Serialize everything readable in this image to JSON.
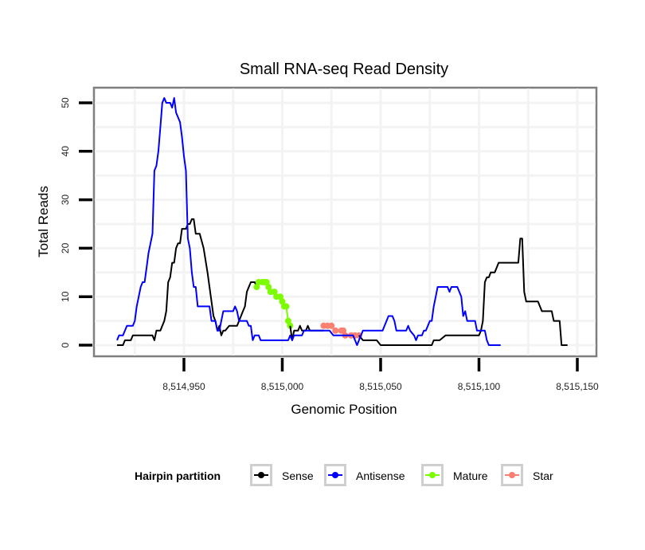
{
  "chart_data": {
    "type": "line",
    "title": "Small RNA-seq Read Density",
    "xlabel": "Genomic Position",
    "ylabel": "Total Reads",
    "xlim": [
      8514916,
      8515150
    ],
    "ylim": [
      -2,
      53
    ],
    "x_ticks": [
      8514950,
      8515000,
      8515050,
      8515100,
      8515150
    ],
    "x_tick_labels": [
      "8,514,950",
      "8,515,000",
      "8,515,050",
      "8,515,100",
      "8,515,150"
    ],
    "y_ticks": [
      0,
      10,
      20,
      30,
      40,
      50
    ],
    "y_tick_labels": [
      "0",
      "10",
      "20",
      "30",
      "40",
      "50"
    ],
    "grid": true,
    "legend_position": "bottom",
    "legend_title": "Hairpin partition",
    "series": [
      {
        "name": "Sense",
        "color": "#000000",
        "points": [
          [
            8514916,
            0
          ],
          [
            8514919,
            0
          ],
          [
            8514920,
            1
          ],
          [
            8514923,
            1
          ],
          [
            8514924,
            2
          ],
          [
            8514934,
            2
          ],
          [
            8514935,
            1
          ],
          [
            8514936,
            3
          ],
          [
            8514938,
            3
          ],
          [
            8514939,
            4
          ],
          [
            8514940,
            5
          ],
          [
            8514941,
            7
          ],
          [
            8514942,
            13
          ],
          [
            8514943,
            14
          ],
          [
            8514944,
            17
          ],
          [
            8514945,
            17
          ],
          [
            8514946,
            20
          ],
          [
            8514947,
            21
          ],
          [
            8514948,
            21
          ],
          [
            8514949,
            24
          ],
          [
            8514951,
            24
          ],
          [
            8514952,
            25
          ],
          [
            8514953,
            25
          ],
          [
            8514954,
            26
          ],
          [
            8514955,
            26
          ],
          [
            8514956,
            23
          ],
          [
            8514958,
            23
          ],
          [
            8514960,
            20
          ],
          [
            8514962,
            15
          ],
          [
            8514964,
            9
          ],
          [
            8514965,
            6
          ],
          [
            8514966,
            5
          ],
          [
            8514967,
            3
          ],
          [
            8514968,
            4
          ],
          [
            8514969,
            2
          ],
          [
            8514970,
            3
          ],
          [
            8514971,
            3
          ],
          [
            8514973,
            4
          ],
          [
            8514977,
            4
          ],
          [
            8514978,
            5
          ],
          [
            8514980,
            7
          ],
          [
            8514981,
            8
          ],
          [
            8514982,
            11
          ],
          [
            8514983,
            12
          ],
          [
            8514984,
            13
          ],
          [
            8514986,
            13
          ],
          [
            8514987,
            12
          ]
        ]
      },
      {
        "name": "Mature",
        "color": "#7cfc00",
        "points": [
          [
            8514987,
            12
          ],
          [
            8514988,
            13
          ],
          [
            8514990,
            13
          ],
          [
            8514991,
            13
          ],
          [
            8514992,
            13
          ],
          [
            8514993,
            12
          ],
          [
            8514994,
            11
          ],
          [
            8514996,
            11
          ],
          [
            8514997,
            10
          ],
          [
            8514999,
            10
          ],
          [
            8515000,
            9
          ],
          [
            8515001,
            8
          ],
          [
            8515002,
            8
          ],
          [
            8515003,
            5
          ],
          [
            8515004,
            4
          ]
        ]
      },
      {
        "name": "Sense",
        "color": "#000000",
        "points": [
          [
            8515004,
            4
          ],
          [
            8515005,
            1
          ],
          [
            8515006,
            3
          ],
          [
            8515008,
            3
          ],
          [
            8515009,
            4
          ],
          [
            8515010,
            3
          ],
          [
            8515012,
            3
          ],
          [
            8515013,
            4
          ],
          [
            8515014,
            3
          ],
          [
            8515017,
            3
          ],
          [
            8515021,
            3
          ]
        ]
      },
      {
        "name": "Star",
        "color": "#fa8072",
        "points": [
          [
            8515021,
            4
          ],
          [
            8515023,
            4
          ],
          [
            8515025,
            4
          ],
          [
            8515027,
            3
          ],
          [
            8515030,
            3
          ],
          [
            8515031,
            3
          ],
          [
            8515032,
            2
          ],
          [
            8515035,
            2
          ],
          [
            8515037,
            2
          ],
          [
            8515039,
            2
          ]
        ]
      },
      {
        "name": "Sense",
        "color": "#000000",
        "points": [
          [
            8515039,
            2
          ],
          [
            8515041,
            1
          ],
          [
            8515048,
            1
          ],
          [
            8515050,
            0
          ],
          [
            8515076,
            0
          ],
          [
            8515077,
            1
          ],
          [
            8515080,
            1
          ],
          [
            8515083,
            2
          ],
          [
            8515100,
            2
          ],
          [
            8515101,
            3
          ],
          [
            8515102,
            5
          ],
          [
            8515103,
            13
          ],
          [
            8515104,
            14
          ],
          [
            8515105,
            14
          ],
          [
            8515106,
            15
          ],
          [
            8515108,
            15
          ],
          [
            8515110,
            17
          ],
          [
            8515120,
            17
          ],
          [
            8515121,
            22
          ],
          [
            8515122,
            22
          ],
          [
            8515123,
            11
          ],
          [
            8515124,
            9
          ],
          [
            8515130,
            9
          ],
          [
            8515132,
            7
          ],
          [
            8515137,
            7
          ],
          [
            8515138,
            5
          ],
          [
            8515141,
            5
          ],
          [
            8515142,
            0
          ],
          [
            8515145,
            0
          ]
        ]
      },
      {
        "name": "Antisense",
        "color": "#0000ff",
        "points": [
          [
            8514916,
            1
          ],
          [
            8514917,
            2
          ],
          [
            8514919,
            2
          ],
          [
            8514921,
            4
          ],
          [
            8514924,
            4
          ],
          [
            8514925,
            5
          ],
          [
            8514926,
            8
          ],
          [
            8514927,
            10
          ],
          [
            8514928,
            12
          ],
          [
            8514929,
            13
          ],
          [
            8514930,
            13
          ],
          [
            8514931,
            16
          ],
          [
            8514932,
            19
          ],
          [
            8514933,
            21
          ],
          [
            8514934,
            23
          ],
          [
            8514935,
            36
          ],
          [
            8514936,
            37
          ],
          [
            8514937,
            40
          ],
          [
            8514938,
            45
          ],
          [
            8514939,
            50
          ],
          [
            8514940,
            51
          ],
          [
            8514941,
            50
          ],
          [
            8514943,
            50
          ],
          [
            8514944,
            49
          ],
          [
            8514945,
            51
          ],
          [
            8514946,
            48
          ],
          [
            8514947,
            47
          ],
          [
            8514948,
            46
          ],
          [
            8514949,
            43
          ],
          [
            8514950,
            39
          ],
          [
            8514951,
            36
          ],
          [
            8514952,
            22
          ],
          [
            8514953,
            20
          ],
          [
            8514954,
            15
          ],
          [
            8514955,
            12
          ],
          [
            8514956,
            12
          ],
          [
            8514957,
            8
          ],
          [
            8514963,
            8
          ],
          [
            8514964,
            5
          ],
          [
            8514966,
            5
          ],
          [
            8514967,
            3
          ],
          [
            8514968,
            3
          ],
          [
            8514969,
            5
          ],
          [
            8514970,
            7
          ],
          [
            8514975,
            7
          ],
          [
            8514976,
            8
          ],
          [
            8514977,
            7
          ],
          [
            8514978,
            5
          ],
          [
            8514982,
            5
          ],
          [
            8514983,
            4
          ],
          [
            8514984,
            4
          ],
          [
            8514985,
            1
          ],
          [
            8514986,
            2
          ],
          [
            8514988,
            2
          ],
          [
            8514989,
            1
          ],
          [
            8515003,
            1
          ],
          [
            8515004,
            2
          ],
          [
            8515005,
            1
          ],
          [
            8515006,
            2
          ],
          [
            8515010,
            2
          ],
          [
            8515011,
            3
          ],
          [
            8515024,
            3
          ],
          [
            8515026,
            2
          ],
          [
            8515036,
            2
          ],
          [
            8515037,
            1
          ],
          [
            8515038,
            0
          ],
          [
            8515039,
            1
          ],
          [
            8515040,
            2
          ],
          [
            8515041,
            3
          ],
          [
            8515051,
            3
          ],
          [
            8515052,
            4
          ],
          [
            8515053,
            5
          ],
          [
            8515054,
            6
          ],
          [
            8515056,
            6
          ],
          [
            8515057,
            5
          ],
          [
            8515058,
            3
          ],
          [
            8515063,
            3
          ],
          [
            8515064,
            4
          ],
          [
            8515065,
            3
          ],
          [
            8515067,
            2
          ],
          [
            8515068,
            1
          ],
          [
            8515069,
            2
          ],
          [
            8515071,
            2
          ],
          [
            8515072,
            3
          ],
          [
            8515073,
            3
          ],
          [
            8515074,
            4
          ],
          [
            8515075,
            5
          ],
          [
            8515076,
            5
          ],
          [
            8515077,
            8
          ],
          [
            8515078,
            10
          ],
          [
            8515079,
            12
          ],
          [
            8515084,
            12
          ],
          [
            8515085,
            11
          ],
          [
            8515086,
            12
          ],
          [
            8515089,
            12
          ],
          [
            8515090,
            11
          ],
          [
            8515091,
            10
          ],
          [
            8515092,
            6
          ],
          [
            8515093,
            7
          ],
          [
            8515094,
            5
          ],
          [
            8515098,
            5
          ],
          [
            8515099,
            3
          ],
          [
            8515103,
            3
          ],
          [
            8515104,
            1
          ],
          [
            8515105,
            0
          ],
          [
            8515111,
            0
          ]
        ]
      }
    ]
  },
  "legend": {
    "title": "Hairpin partition",
    "items": [
      {
        "label": "Sense",
        "color": "#000000"
      },
      {
        "label": "Antisense",
        "color": "#0000ff"
      },
      {
        "label": "Mature",
        "color": "#7cfc00"
      },
      {
        "label": "Star",
        "color": "#fa8072"
      }
    ]
  }
}
